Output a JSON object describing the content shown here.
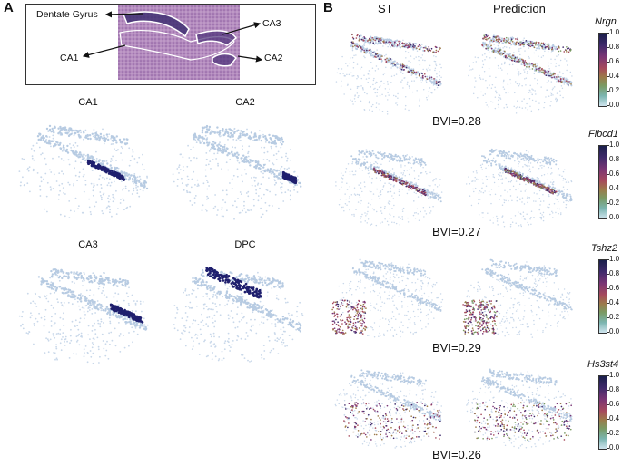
{
  "panel_a": {
    "letter": "A",
    "histology_labels": [
      "Dentate Gyrus",
      "CA3",
      "CA1",
      "CA2"
    ],
    "subplots": [
      {
        "label": "CA1",
        "highlight": "ca1"
      },
      {
        "label": "CA2",
        "highlight": "ca2"
      },
      {
        "label": "CA3",
        "highlight": "ca3"
      },
      {
        "label": "DPC",
        "highlight": "dpc"
      }
    ]
  },
  "panel_b": {
    "letter": "B",
    "columns": [
      "ST",
      "Prediction"
    ],
    "rows": [
      {
        "gene": "Nrgn",
        "bvi": "BVI=0.28"
      },
      {
        "gene": "Fibcd1",
        "bvi": "BVI=0.27"
      },
      {
        "gene": "Tshz2",
        "bvi": "BVI=0.29"
      },
      {
        "gene": "Hs3st4",
        "bvi": "BVI=0.26"
      }
    ],
    "colorbar_ticks": [
      "1.0",
      "0.8",
      "0.6",
      "0.4",
      "0.2",
      "0.0"
    ]
  },
  "colors": {
    "tissue": "#c9d8ea",
    "highlight": "#1f1f6e",
    "histology_bg": "#b48cbf",
    "histology_line": "#ffffff"
  }
}
